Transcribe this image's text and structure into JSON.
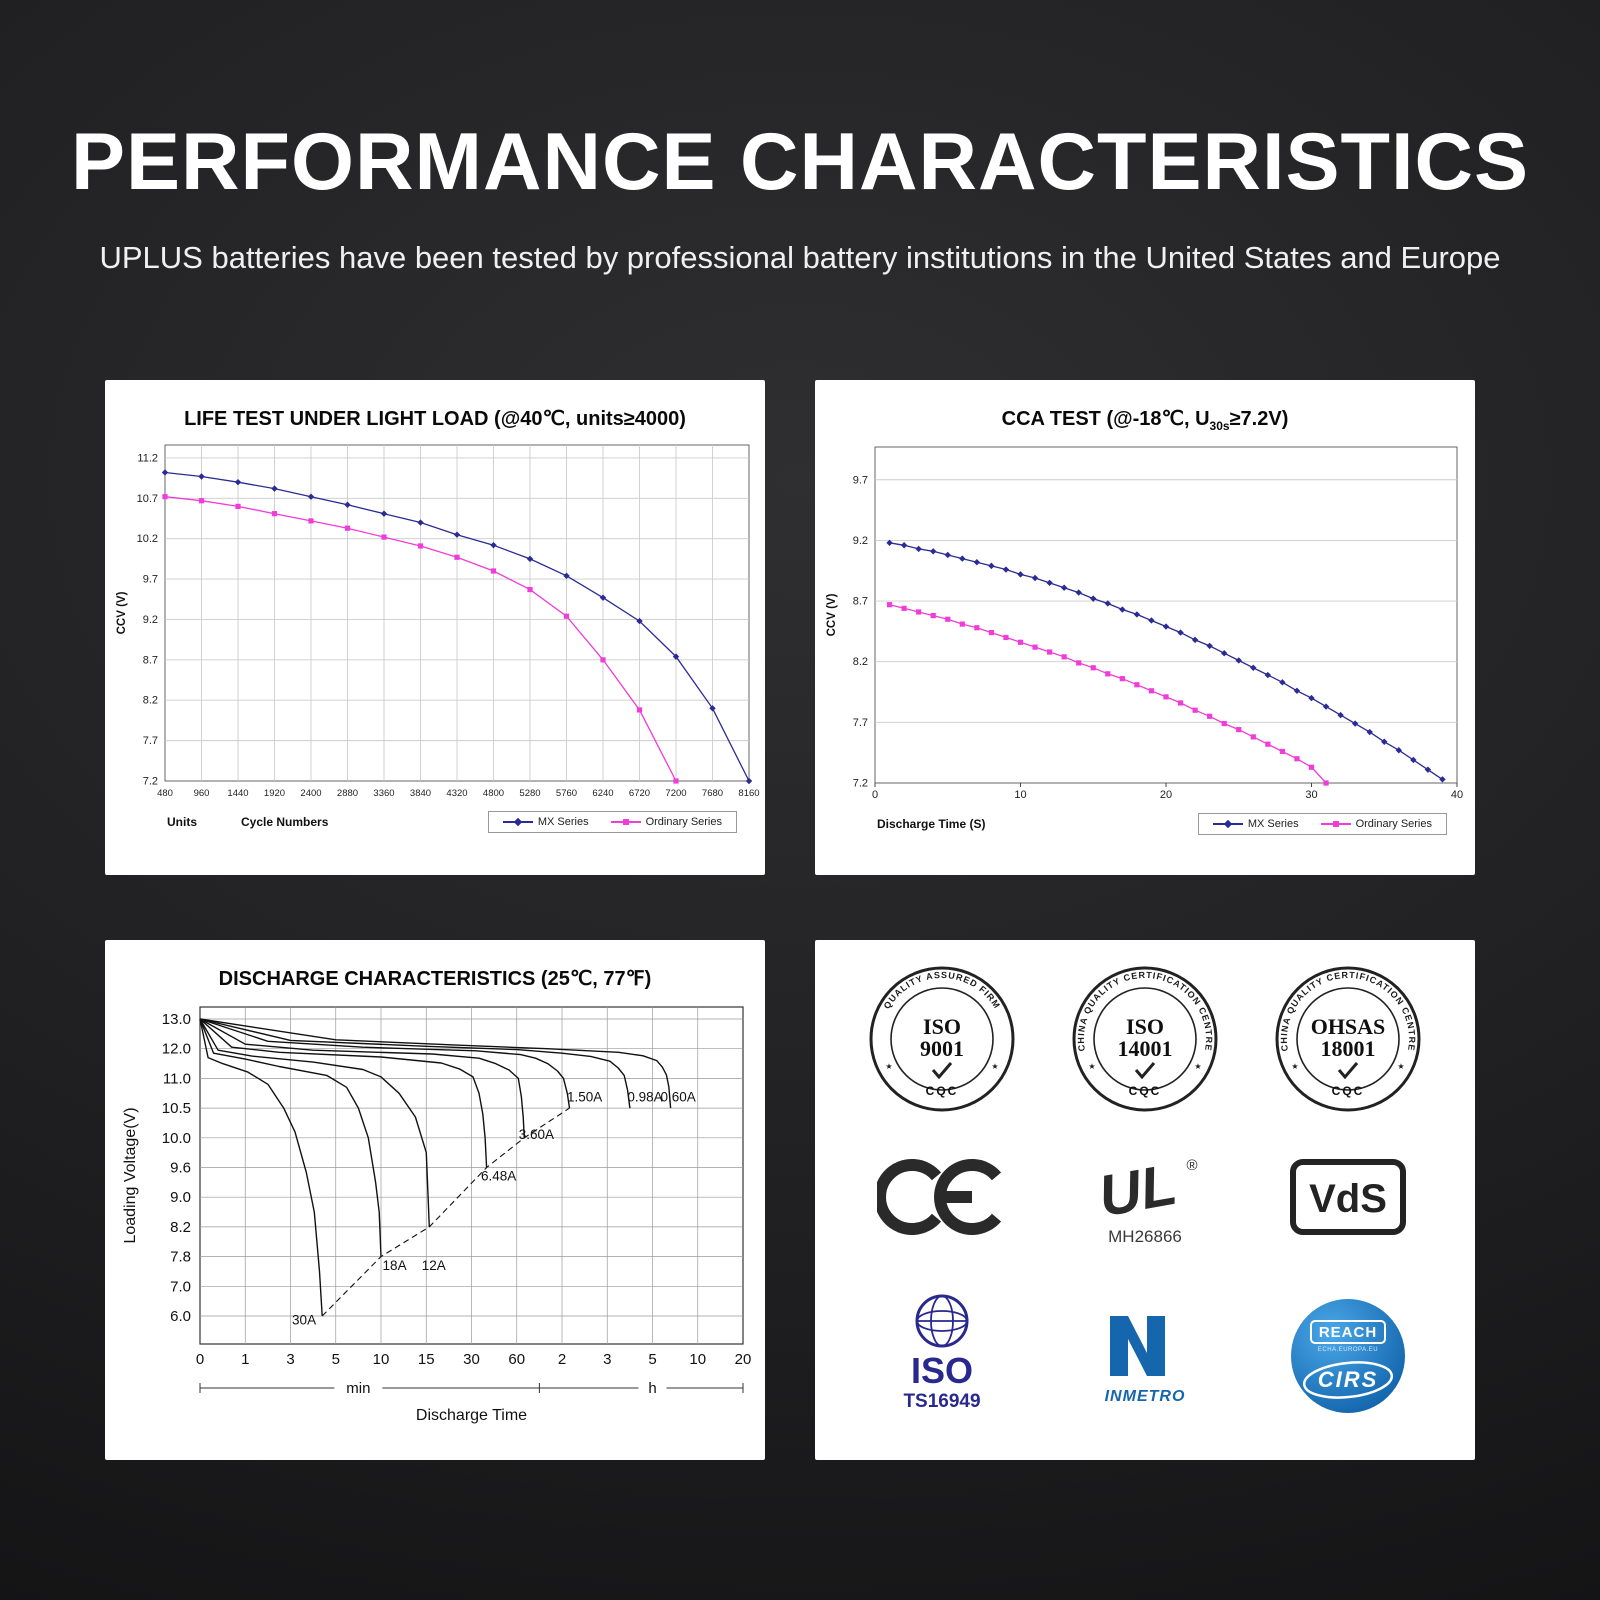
{
  "page": {
    "title": "PERFORMANCE CHARACTERISTICS",
    "subtitle": "UPLUS batteries have been tested by professional battery institutions in the United States and Europe"
  },
  "chart_data": [
    {
      "type": "line",
      "title": "LIFE TEST UNDER LIGHT LOAD (@40℃, units≥4000)",
      "ylabel": "CCV (V)",
      "x_axis_unit_label": "Units",
      "xlabel": "Cycle Numbers",
      "ytick_values": [
        7.2,
        7.7,
        8.2,
        8.7,
        9.2,
        9.7,
        10.2,
        10.7,
        11.2
      ],
      "xtick_values": [
        480,
        960,
        1440,
        1920,
        2400,
        2880,
        3360,
        3840,
        4320,
        4800,
        5280,
        5760,
        6240,
        6720,
        7200,
        7680,
        8160
      ],
      "ylim": [
        7.2,
        11.36
      ],
      "xlim": [
        480,
        8160
      ],
      "grid": "both",
      "legend_position": "bottom-right",
      "series": [
        {
          "name": "MX Series",
          "color": "#2b2b96",
          "marker": "diamond",
          "x": [
            480,
            960,
            1440,
            1920,
            2400,
            2880,
            3360,
            3840,
            4320,
            4800,
            5280,
            5760,
            6240,
            6720,
            7200,
            7680,
            8160
          ],
          "y": [
            11.02,
            10.97,
            10.9,
            10.82,
            10.72,
            10.62,
            10.51,
            10.4,
            10.25,
            10.12,
            9.95,
            9.74,
            9.47,
            9.18,
            8.74,
            8.1,
            7.2
          ]
        },
        {
          "name": "Ordinary Series",
          "color": "#f03cd8",
          "marker": "square",
          "x": [
            480,
            960,
            1440,
            1920,
            2400,
            2880,
            3360,
            3840,
            4320,
            4800,
            5280,
            5760,
            6240,
            6720,
            7200
          ],
          "y": [
            10.72,
            10.67,
            10.6,
            10.51,
            10.42,
            10.33,
            10.22,
            10.11,
            9.97,
            9.8,
            9.57,
            9.24,
            8.7,
            8.08,
            7.2
          ]
        }
      ]
    },
    {
      "type": "line",
      "title": "CCA TEST (@-18℃, U30s≥7.2V)",
      "title_prefix": "CCA TEST (@-18℃, U",
      "title_sub": "30s",
      "title_suffix": "≥7.2V)",
      "ylabel": "CCV (V)",
      "xlabel": "Discharge Time (S)",
      "ytick_values": [
        7.2,
        7.7,
        8.2,
        8.7,
        9.2,
        9.7
      ],
      "xtick_values": [
        0,
        10,
        20,
        30,
        40
      ],
      "ylim": [
        7.2,
        9.97
      ],
      "xlim": [
        0,
        40
      ],
      "grid": "horizontal",
      "legend_position": "bottom-right",
      "series": [
        {
          "name": "MX Series",
          "color": "#2b2b96",
          "marker": "diamond",
          "x": [
            1,
            2,
            3,
            4,
            5,
            6,
            7,
            8,
            9,
            10,
            11,
            12,
            13,
            14,
            15,
            16,
            17,
            18,
            19,
            20,
            21,
            22,
            23,
            24,
            25,
            26,
            27,
            28,
            29,
            30,
            31,
            32,
            33,
            34,
            35,
            36,
            37,
            38,
            39
          ],
          "y": [
            9.18,
            9.16,
            9.13,
            9.11,
            9.08,
            9.05,
            9.02,
            8.99,
            8.96,
            8.92,
            8.89,
            8.85,
            8.81,
            8.77,
            8.72,
            8.68,
            8.63,
            8.59,
            8.54,
            8.49,
            8.44,
            8.38,
            8.33,
            8.27,
            8.21,
            8.15,
            8.09,
            8.03,
            7.96,
            7.9,
            7.83,
            7.76,
            7.69,
            7.62,
            7.54,
            7.47,
            7.39,
            7.31,
            7.23
          ]
        },
        {
          "name": "Ordinary Series",
          "color": "#f03cd8",
          "marker": "square",
          "x": [
            1,
            2,
            3,
            4,
            5,
            6,
            7,
            8,
            9,
            10,
            11,
            12,
            13,
            14,
            15,
            16,
            17,
            18,
            19,
            20,
            21,
            22,
            23,
            24,
            25,
            26,
            27,
            28,
            29,
            30,
            31
          ],
          "y": [
            8.67,
            8.64,
            8.61,
            8.58,
            8.55,
            8.51,
            8.48,
            8.44,
            8.4,
            8.36,
            8.32,
            8.28,
            8.24,
            8.19,
            8.15,
            8.1,
            8.06,
            8.01,
            7.96,
            7.91,
            7.86,
            7.8,
            7.75,
            7.69,
            7.64,
            7.58,
            7.52,
            7.46,
            7.4,
            7.33,
            7.2
          ]
        }
      ]
    },
    {
      "type": "line",
      "title": "DISCHARGE CHARACTERISTICS (25℃, 77℉)",
      "ylabel": "Loading  Voltage(V)",
      "xlabel": "Discharge Time",
      "ytick_values": [
        6.0,
        7.0,
        7.8,
        8.2,
        9.0,
        9.6,
        10.0,
        10.5,
        11.0,
        12.0,
        13.0
      ],
      "ytick_labels": [
        "6.0",
        "7.0",
        "7.8",
        "8.2",
        "9.0",
        "9.6",
        "10.0",
        "10.5",
        "11.0",
        "12.0",
        "13.0"
      ],
      "xtick_values": [
        0,
        1,
        3,
        5,
        10,
        15,
        30,
        60,
        120,
        180,
        300,
        600,
        1200
      ],
      "xtick_labels": [
        "0",
        "1",
        "3",
        "5",
        "10",
        "15",
        "30",
        "60",
        "2",
        "3",
        "5",
        "10",
        "20"
      ],
      "x_unit_labels": [
        "min",
        "h"
      ],
      "grid": "both",
      "series": [
        {
          "name": "30A",
          "points": [
            [
              0,
              13
            ],
            [
              0.18,
              11.7
            ],
            [
              0.5,
              11.5
            ],
            [
              1.1,
              11.22
            ],
            [
              2,
              10.9
            ],
            [
              2.7,
              10.5
            ],
            [
              3.2,
              10.1
            ],
            [
              3.7,
              9.5
            ],
            [
              4.05,
              8.6
            ],
            [
              4.28,
              7.4
            ],
            [
              4.4,
              6.0
            ]
          ]
        },
        {
          "name": "18A",
          "points": [
            [
              0,
              13
            ],
            [
              0.3,
              11.85
            ],
            [
              1,
              11.65
            ],
            [
              2.5,
              11.4
            ],
            [
              4.6,
              11.1
            ],
            [
              6.2,
              10.85
            ],
            [
              7.5,
              10.5
            ],
            [
              8.6,
              10.0
            ],
            [
              9.4,
              9.3
            ],
            [
              9.8,
              8.6
            ],
            [
              10,
              7.8
            ]
          ]
        },
        {
          "name": "12A",
          "points": [
            [
              0,
              13
            ],
            [
              0.4,
              11.95
            ],
            [
              1.3,
              11.75
            ],
            [
              4,
              11.55
            ],
            [
              8,
              11.3
            ],
            [
              10,
              11.05
            ],
            [
              12,
              10.75
            ],
            [
              13.8,
              10.35
            ],
            [
              15,
              9.8
            ],
            [
              15.6,
              9.0
            ],
            [
              16,
              8.2
            ]
          ]
        },
        {
          "name": "6.48A",
          "points": [
            [
              0,
              13
            ],
            [
              0.7,
              12.05
            ],
            [
              2.5,
              11.88
            ],
            [
              10,
              11.72
            ],
            [
              20,
              11.52
            ],
            [
              26,
              11.32
            ],
            [
              31,
              11.05
            ],
            [
              35,
              10.75
            ],
            [
              37.5,
              10.4
            ],
            [
              39,
              10.0
            ],
            [
              40,
              9.6
            ]
          ]
        },
        {
          "name": "3.60A",
          "points": [
            [
              0,
              13
            ],
            [
              1,
              12.15
            ],
            [
              4,
              11.95
            ],
            [
              17,
              11.82
            ],
            [
              35,
              11.68
            ],
            [
              46,
              11.5
            ],
            [
              55,
              11.28
            ],
            [
              62,
              11.0
            ],
            [
              66,
              10.7
            ],
            [
              68.5,
              10.35
            ],
            [
              70,
              10.0
            ]
          ]
        },
        {
          "name": "1.50A",
          "points": [
            [
              0,
              13
            ],
            [
              2,
              12.25
            ],
            [
              8,
              12.05
            ],
            [
              33,
              11.93
            ],
            [
              65,
              11.8
            ],
            [
              85,
              11.68
            ],
            [
              101,
              11.5
            ],
            [
              114,
              11.25
            ],
            [
              122,
              11.0
            ],
            [
              127,
              10.75
            ],
            [
              130,
              10.5
            ]
          ]
        },
        {
          "name": "0.98A",
          "points": [
            [
              0,
              13
            ],
            [
              3,
              12.28
            ],
            [
              15,
              12.08
            ],
            [
              60,
              11.97
            ],
            [
              120,
              11.85
            ],
            [
              158,
              11.74
            ],
            [
              187,
              11.58
            ],
            [
              209,
              11.35
            ],
            [
              225,
              11.1
            ],
            [
              234,
              10.8
            ],
            [
              240,
              10.5
            ]
          ]
        },
        {
          "name": "0.60A",
          "points": [
            [
              0,
              13
            ],
            [
              5,
              12.3
            ],
            [
              25,
              12.12
            ],
            [
              100,
              12.0
            ],
            [
              210,
              11.88
            ],
            [
              275,
              11.76
            ],
            [
              328,
              11.6
            ],
            [
              365,
              11.38
            ],
            [
              392,
              11.12
            ],
            [
              409,
              10.85
            ],
            [
              420,
              10.5
            ]
          ]
        }
      ],
      "knee_line": [
        [
          4.4,
          6.0
        ],
        [
          10,
          7.8
        ],
        [
          16,
          8.2
        ],
        [
          40,
          9.6
        ],
        [
          70,
          10.0
        ],
        [
          130,
          10.5
        ]
      ],
      "annotations": [
        {
          "text": "1.50A",
          "x": 150,
          "y": 10.68
        },
        {
          "text": "0.98A",
          "x": 280,
          "y": 10.68
        },
        {
          "text": "0.60A",
          "x": 470,
          "y": 10.68
        },
        {
          "text": "3.60A",
          "x": 86,
          "y": 10.05
        },
        {
          "text": "6.48A",
          "x": 48,
          "y": 9.42
        },
        {
          "text": "18A",
          "x": 11.5,
          "y": 7.55
        },
        {
          "text": "12A",
          "x": 17.5,
          "y": 7.55
        },
        {
          "text": "30A",
          "x": 3.6,
          "y": 5.85
        }
      ]
    }
  ],
  "certifications": {
    "seals": [
      {
        "arc": "QUALITY ASSURED FIRM",
        "line1": "ISO",
        "line2": "9001",
        "bottom": "CQC"
      },
      {
        "arc": "CHINA QUALITY CERTIFICATION CENTRE",
        "line1": "ISO",
        "line2": "14001",
        "bottom": "CQC"
      },
      {
        "arc": "CHINA QUALITY CERTIFICATION CENTRE",
        "line1": "OHSAS",
        "line2": "18001",
        "bottom": "CQC"
      }
    ],
    "ce_label": "CE",
    "ul": {
      "letters": "UL",
      "registered": "®",
      "code": "MH26866"
    },
    "vds_label": "VdS",
    "iso_ts": {
      "line1": "ISO",
      "line2": "TS16949"
    },
    "inmetro_label": "INMETRO",
    "reach": {
      "title": "REACH",
      "subtitle": "ECHA.EUROPA.EU",
      "brand": "CIRS"
    },
    "colors": {
      "navy_logo": "#28288e",
      "inmetro_blue": "#1566ad",
      "reach_blue": "#0c5da5"
    }
  }
}
